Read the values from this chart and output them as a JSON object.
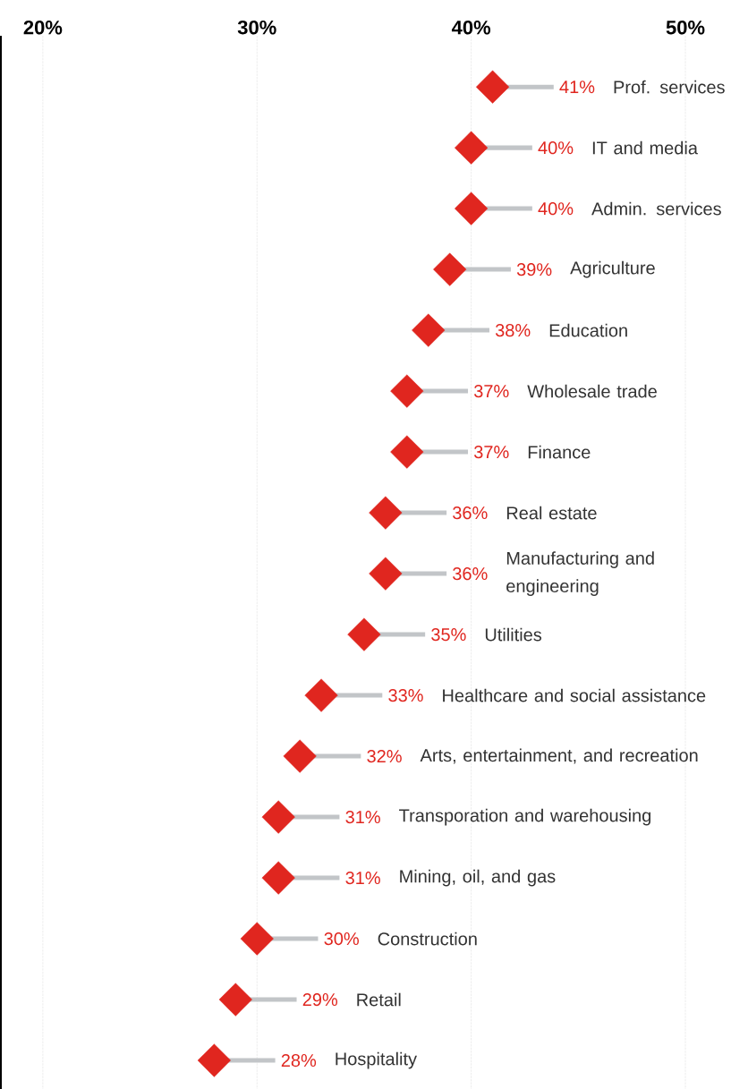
{
  "chart_data": {
    "type": "scatter",
    "orientation": "horizontal",
    "marker": "diamond",
    "color": "#e0261f",
    "categories": [
      "Prof. services",
      "IT and media",
      "Admin. services",
      "Agriculture",
      "Education",
      "Wholesale trade",
      "Finance",
      "Real estate",
      "Manufacturing and engineering",
      "Utilities",
      "Healthcare and social assistance",
      "Arts, entertainment, and recreation",
      "Transporation and warehousing",
      "Mining, oil, and gas",
      "Construction",
      "Retail",
      "Hospitality"
    ],
    "values": [
      41,
      40,
      40,
      39,
      38,
      37,
      37,
      36,
      36,
      35,
      33,
      32,
      31,
      31,
      30,
      29,
      28
    ],
    "value_labels": [
      "41%",
      "40%",
      "40%",
      "39%",
      "38%",
      "37%",
      "37%",
      "36%",
      "36%",
      "35%",
      "33%",
      "32%",
      "31%",
      "31%",
      "30%",
      "29%",
      "28%"
    ],
    "xlim": [
      18,
      50
    ],
    "xticks": [
      {
        "value": 20,
        "label": "20%"
      },
      {
        "value": 30,
        "label": "30%"
      },
      {
        "value": 40,
        "label": "40%"
      },
      {
        "value": 50,
        "label": "50%"
      }
    ],
    "grid": "x"
  }
}
